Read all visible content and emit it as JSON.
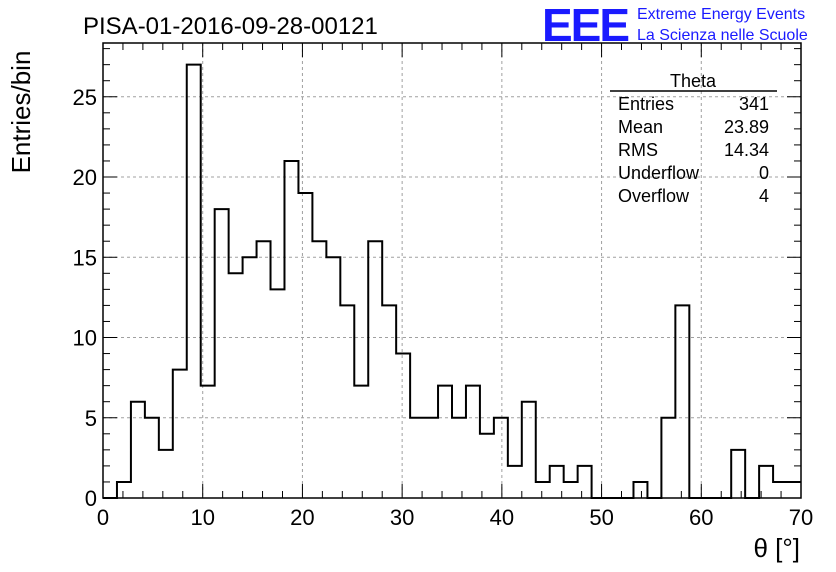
{
  "header": {
    "title": "PISA-01-2016-09-28-00121",
    "logo_text": "EEE",
    "logo_line1": "Extreme Energy Events",
    "logo_line2": "La Scienza nelle Scuole"
  },
  "colors": {
    "logo": "#1a1aff",
    "line": "#000000",
    "grid": "#a0a0a0"
  },
  "stats": {
    "title": "Theta",
    "rows": [
      {
        "label": "Entries",
        "value": "341"
      },
      {
        "label": "Mean",
        "value": "23.89"
      },
      {
        "label": "RMS",
        "value": "14.34"
      },
      {
        "label": "Underflow",
        "value": "0"
      },
      {
        "label": "Overflow",
        "value": "4"
      }
    ]
  },
  "chart_data": {
    "type": "histogram",
    "xlabel": "θ [°]",
    "ylabel": "Entries/bin",
    "xlim": [
      0,
      70
    ],
    "ylim": [
      0,
      28.35
    ],
    "grid": true,
    "x_ticks": [
      0,
      10,
      20,
      30,
      40,
      50,
      60,
      70
    ],
    "y_ticks": [
      0,
      5,
      10,
      15,
      20,
      25
    ],
    "bin_width": 1.4,
    "values": [
      0,
      1,
      6,
      5,
      3,
      8,
      27,
      7,
      18,
      14,
      15,
      16,
      13,
      21,
      19,
      16,
      15,
      12,
      7,
      16,
      12,
      9,
      5,
      5,
      7,
      5,
      7,
      4,
      5,
      2,
      6,
      1,
      2,
      1,
      2,
      0,
      0,
      0,
      1,
      0,
      5,
      12,
      0,
      0,
      0,
      3,
      0,
      2,
      1,
      1
    ]
  }
}
